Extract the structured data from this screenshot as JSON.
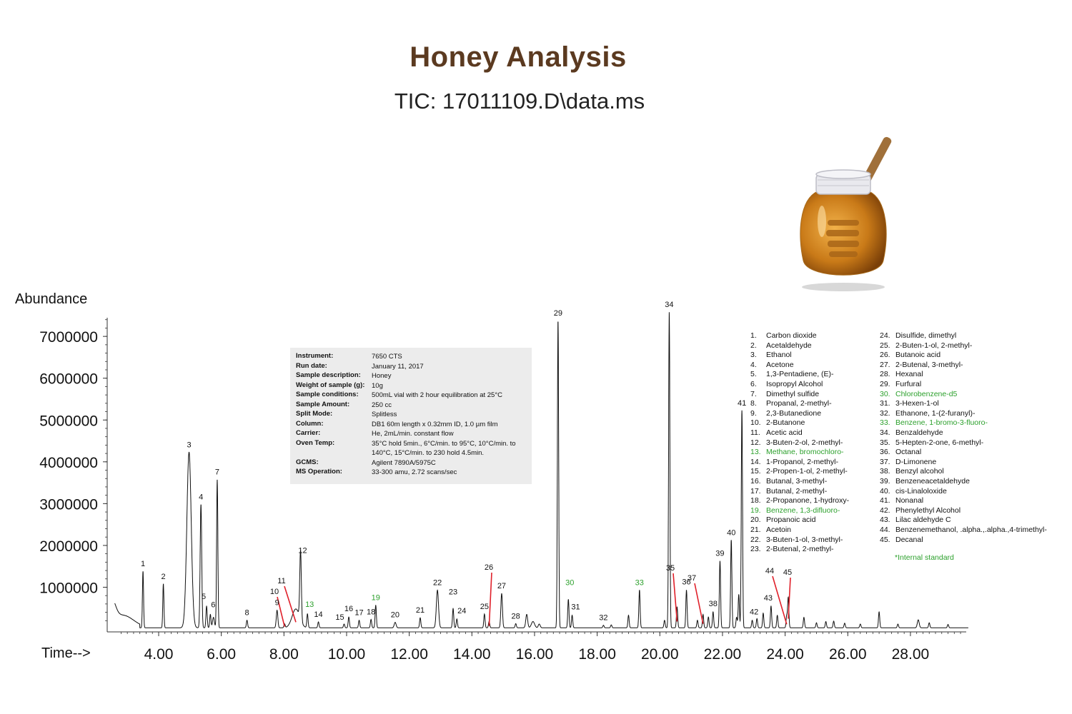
{
  "header": {
    "title": "Honey Analysis",
    "subtitle": "TIC: 17011109.D\\data.ms"
  },
  "colors": {
    "title": "#5b3a20",
    "trace": "#111111",
    "standard": "#2ca02c",
    "pointer": "#e0202a",
    "panel": "#ececec",
    "honey": "#c97a18"
  },
  "info_panel": {
    "rows": [
      {
        "key": "Instrument:",
        "value": "7650 CTS"
      },
      {
        "key": "Run date:",
        "value": "January 11, 2017"
      },
      {
        "key": "Sample description:",
        "value": "Honey"
      },
      {
        "key": "Weight of sample (g):",
        "value": "10g"
      },
      {
        "key": "Sample conditions:",
        "value": "500mL vial with 2 hour equilibration at 25°C"
      },
      {
        "key": "Sample Amount:",
        "value": "250 cc"
      },
      {
        "key": "Split Mode:",
        "value": "Splitless"
      },
      {
        "key": "Column:",
        "value": "DB1 60m length x 0.32mm ID, 1.0 µm film"
      },
      {
        "key": "Carrier:",
        "value": "He, 2mL/min. constant flow"
      },
      {
        "key": "Oven Temp:",
        "value": "35°C hold 5min., 6°C/min. to 95°C, 10°C/min. to 140°C, 15°C/min. to 230 hold 4.5min."
      },
      {
        "key": "GCMS:",
        "value": "Agilent 7890A/5975C"
      },
      {
        "key": "MS Operation:",
        "value": "33-300 amu, 2.72 scans/sec"
      }
    ]
  },
  "compounds": [
    {
      "n": "1.",
      "name": "Carbon dioxide",
      "std": false
    },
    {
      "n": "2.",
      "name": "Acetaldehyde",
      "std": false
    },
    {
      "n": "3.",
      "name": "Ethanol",
      "std": false
    },
    {
      "n": "4.",
      "name": "Acetone",
      "std": false
    },
    {
      "n": "5.",
      "name": "1,3-Pentadiene, (E)-",
      "std": false
    },
    {
      "n": "6.",
      "name": "Isopropyl Alcohol",
      "std": false
    },
    {
      "n": "7.",
      "name": "Dimethyl sulfide",
      "std": false
    },
    {
      "n": "8.",
      "name": "Propanal, 2-methyl-",
      "std": false
    },
    {
      "n": "9.",
      "name": "2,3-Butanedione",
      "std": false
    },
    {
      "n": "10.",
      "name": "2-Butanone",
      "std": false
    },
    {
      "n": "11.",
      "name": "Acetic acid",
      "std": false
    },
    {
      "n": "12.",
      "name": "3-Buten-2-ol, 2-methyl-",
      "std": false
    },
    {
      "n": "13.",
      "name": "Methane, bromochloro-",
      "std": true
    },
    {
      "n": "14.",
      "name": "1-Propanol, 2-methyl-",
      "std": false
    },
    {
      "n": "15.",
      "name": "2-Propen-1-ol, 2-methyl-",
      "std": false
    },
    {
      "n": "16.",
      "name": "Butanal, 3-methyl-",
      "std": false
    },
    {
      "n": "17.",
      "name": "Butanal, 2-methyl-",
      "std": false
    },
    {
      "n": "18.",
      "name": "2-Propanone, 1-hydroxy-",
      "std": false
    },
    {
      "n": "19.",
      "name": "Benzene, 1,3-difluoro-",
      "std": true
    },
    {
      "n": "20.",
      "name": "Propanoic acid",
      "std": false
    },
    {
      "n": "21.",
      "name": "Acetoin",
      "std": false
    },
    {
      "n": "22.",
      "name": "3-Buten-1-ol, 3-methyl-",
      "std": false
    },
    {
      "n": "23.",
      "name": "2-Butenal, 2-methyl-",
      "std": false
    },
    {
      "n": "24.",
      "name": "Disulfide, dimethyl",
      "std": false
    },
    {
      "n": "25.",
      "name": "2-Buten-1-ol, 2-methyl-",
      "std": false
    },
    {
      "n": "26.",
      "name": "Butanoic acid",
      "std": false
    },
    {
      "n": "27.",
      "name": "2-Butenal, 3-methyl-",
      "std": false
    },
    {
      "n": "28.",
      "name": "Hexanal",
      "std": false
    },
    {
      "n": "29.",
      "name": "Furfural",
      "std": false
    },
    {
      "n": "30.",
      "name": "Chlorobenzene-d5",
      "std": true
    },
    {
      "n": "31.",
      "name": "3-Hexen-1-ol",
      "std": false
    },
    {
      "n": "32.",
      "name": "Ethanone, 1-(2-furanyl)-",
      "std": false
    },
    {
      "n": "33.",
      "name": "Benzene, 1-bromo-3-fluoro-",
      "std": true
    },
    {
      "n": "34.",
      "name": "Benzaldehyde",
      "std": false
    },
    {
      "n": "35.",
      "name": "5-Hepten-2-one, 6-methyl-",
      "std": false
    },
    {
      "n": "36.",
      "name": "Octanal",
      "std": false
    },
    {
      "n": "37.",
      "name": "D-Limonene",
      "std": false
    },
    {
      "n": "38.",
      "name": "Benzyl alcohol",
      "std": false
    },
    {
      "n": "39.",
      "name": "Benzeneacetaldehyde",
      "std": false
    },
    {
      "n": "40.",
      "name": "cis-Linaloloxide",
      "std": false
    },
    {
      "n": "41.",
      "name": "Nonanal",
      "std": false
    },
    {
      "n": "42.",
      "name": "Phenylethyl Alcohol",
      "std": false
    },
    {
      "n": "43.",
      "name": "Lilac aldehyde C",
      "std": false
    },
    {
      "n": "44.",
      "name": "Benzenemethanol, .alpha.,.alpha.,4-trimethyl-",
      "std": false
    },
    {
      "n": "45.",
      "name": "Decanal",
      "std": false
    }
  ],
  "footnote": "*Internal standard",
  "chart_data": {
    "type": "line",
    "title": "Honey Analysis",
    "subtitle": "TIC: 17011109.D\\data.ms",
    "ylabel": "Abundance",
    "xlabel": "Time-->",
    "xlim": [
      2.0,
      30.0
    ],
    "ylim": [
      0,
      7600000
    ],
    "x_ticks": [
      "4.00",
      "6.00",
      "8.00",
      "10.00",
      "12.00",
      "14.00",
      "16.00",
      "18.00",
      "20.00",
      "22.00",
      "24.00",
      "26.00",
      "28.00"
    ],
    "y_ticks": [
      "1000000",
      "2000000",
      "3000000",
      "4000000",
      "5000000",
      "6000000",
      "7000000"
    ],
    "baseline": 30000,
    "peaks": [
      {
        "label": "1",
        "rt": 3.5,
        "height": 1350000,
        "width": 0.018,
        "std": false
      },
      {
        "label": "2",
        "rt": 4.15,
        "height": 1050000,
        "width": 0.018,
        "std": false
      },
      {
        "label": "3",
        "rt": 4.97,
        "height": 4200000,
        "width": 0.07,
        "std": false
      },
      {
        "label": "4",
        "rt": 5.35,
        "height": 2950000,
        "width": 0.025,
        "std": false
      },
      {
        "label": "5",
        "rt": 5.53,
        "height": 520000,
        "width": 0.02,
        "std": false
      },
      {
        "label": "6",
        "rt": 5.65,
        "height": 320000,
        "width": 0.02,
        "std": false
      },
      {
        "label": "7",
        "rt": 5.87,
        "height": 3550000,
        "width": 0.02,
        "std": false
      },
      {
        "label": "8",
        "rt": 6.82,
        "height": 180000,
        "width": 0.02,
        "std": false
      },
      {
        "label": "9",
        "rt": 7.78,
        "height": 420000,
        "width": 0.025,
        "std": false
      },
      {
        "label": "10",
        "rt": 8.02,
        "height": 90000,
        "width": 0.02,
        "std": false
      },
      {
        "label": "11",
        "rt": 8.38,
        "height": 450000,
        "width": 0.12,
        "std": false
      },
      {
        "label": "12",
        "rt": 8.53,
        "height": 1650000,
        "width": 0.025,
        "std": false
      },
      {
        "label": "13",
        "rt": 8.75,
        "height": 330000,
        "width": 0.02,
        "std": true
      },
      {
        "label": "14",
        "rt": 9.1,
        "height": 140000,
        "width": 0.02,
        "std": false
      },
      {
        "label": "15",
        "rt": 9.92,
        "height": 90000,
        "width": 0.02,
        "std": false
      },
      {
        "label": "16",
        "rt": 10.07,
        "height": 260000,
        "width": 0.02,
        "std": false
      },
      {
        "label": "17",
        "rt": 10.4,
        "height": 180000,
        "width": 0.02,
        "std": false
      },
      {
        "label": "18",
        "rt": 10.78,
        "height": 200000,
        "width": 0.02,
        "std": false
      },
      {
        "label": "19",
        "rt": 10.93,
        "height": 540000,
        "width": 0.02,
        "std": true
      },
      {
        "label": "20",
        "rt": 11.55,
        "height": 130000,
        "width": 0.03,
        "std": false
      },
      {
        "label": "21",
        "rt": 12.35,
        "height": 240000,
        "width": 0.02,
        "std": false
      },
      {
        "label": "22",
        "rt": 12.9,
        "height": 900000,
        "width": 0.035,
        "std": false
      },
      {
        "label": "23",
        "rt": 13.4,
        "height": 460000,
        "width": 0.02,
        "std": false
      },
      {
        "label": "24",
        "rt": 13.52,
        "height": 210000,
        "width": 0.02,
        "std": false
      },
      {
        "label": "25",
        "rt": 14.4,
        "height": 330000,
        "width": 0.02,
        "std": false
      },
      {
        "label": "26",
        "rt": 14.55,
        "height": 150000,
        "width": 0.02,
        "std": false
      },
      {
        "label": "27",
        "rt": 14.95,
        "height": 820000,
        "width": 0.025,
        "std": false
      },
      {
        "label": "28",
        "rt": 15.4,
        "height": 100000,
        "width": 0.02,
        "std": false
      },
      {
        "label": "29",
        "rt": 16.75,
        "height": 7350000,
        "width": 0.02,
        "std": false
      },
      {
        "label": "30",
        "rt": 17.08,
        "height": 680000,
        "width": 0.02,
        "std": true
      },
      {
        "label": "31",
        "rt": 17.2,
        "height": 300000,
        "width": 0.02,
        "std": false
      },
      {
        "label": "32",
        "rt": 18.2,
        "height": 60000,
        "width": 0.02,
        "std": false
      },
      {
        "label": "33",
        "rt": 19.35,
        "height": 900000,
        "width": 0.02,
        "std": true
      },
      {
        "label": "34",
        "rt": 20.3,
        "height": 7550000,
        "width": 0.02,
        "std": false
      },
      {
        "label": "35",
        "rt": 20.55,
        "height": 500000,
        "width": 0.02,
        "std": false
      },
      {
        "label": "36",
        "rt": 20.85,
        "height": 900000,
        "width": 0.02,
        "std": false
      },
      {
        "label": "37",
        "rt": 21.38,
        "height": 320000,
        "width": 0.02,
        "std": false
      },
      {
        "label": "38",
        "rt": 21.7,
        "height": 380000,
        "width": 0.02,
        "std": false
      },
      {
        "label": "39",
        "rt": 21.92,
        "height": 1600000,
        "width": 0.02,
        "std": false
      },
      {
        "label": "40",
        "rt": 22.28,
        "height": 2100000,
        "width": 0.02,
        "std": false
      },
      {
        "label": "41",
        "rt": 22.62,
        "height": 5200000,
        "width": 0.02,
        "std": false
      },
      {
        "label": "42",
        "rt": 23.1,
        "height": 220000,
        "width": 0.02,
        "std": false
      },
      {
        "label": "43",
        "rt": 23.55,
        "height": 520000,
        "width": 0.02,
        "std": false
      },
      {
        "label": "44",
        "rt": 24.05,
        "height": 280000,
        "width": 0.02,
        "std": false
      },
      {
        "label": "45",
        "rt": 24.1,
        "height": 720000,
        "width": 0.02,
        "std": false
      }
    ],
    "minor_peaks": [
      {
        "rt": 2.5,
        "height": 500000,
        "width": 0.12
      },
      {
        "rt": 5.75,
        "height": 250000,
        "width": 0.03
      },
      {
        "rt": 15.75,
        "height": 320000,
        "width": 0.03
      },
      {
        "rt": 15.95,
        "height": 150000,
        "width": 0.05
      },
      {
        "rt": 16.15,
        "height": 90000,
        "width": 0.03
      },
      {
        "rt": 18.45,
        "height": 70000,
        "width": 0.02
      },
      {
        "rt": 19.0,
        "height": 300000,
        "width": 0.02
      },
      {
        "rt": 20.15,
        "height": 180000,
        "width": 0.02
      },
      {
        "rt": 21.2,
        "height": 180000,
        "width": 0.02
      },
      {
        "rt": 21.55,
        "height": 260000,
        "width": 0.02
      },
      {
        "rt": 22.45,
        "height": 250000,
        "width": 0.02
      },
      {
        "rt": 22.52,
        "height": 800000,
        "width": 0.02
      },
      {
        "rt": 22.95,
        "height": 180000,
        "width": 0.02
      },
      {
        "rt": 23.3,
        "height": 350000,
        "width": 0.02
      },
      {
        "rt": 23.75,
        "height": 300000,
        "width": 0.02
      },
      {
        "rt": 24.6,
        "height": 250000,
        "width": 0.02
      },
      {
        "rt": 25.0,
        "height": 120000,
        "width": 0.02
      },
      {
        "rt": 25.3,
        "height": 150000,
        "width": 0.02
      },
      {
        "rt": 25.55,
        "height": 160000,
        "width": 0.02
      },
      {
        "rt": 25.9,
        "height": 110000,
        "width": 0.02
      },
      {
        "rt": 26.4,
        "height": 90000,
        "width": 0.02
      },
      {
        "rt": 27.0,
        "height": 380000,
        "width": 0.02
      },
      {
        "rt": 27.6,
        "height": 90000,
        "width": 0.02
      },
      {
        "rt": 28.25,
        "height": 190000,
        "width": 0.03
      },
      {
        "rt": 28.6,
        "height": 120000,
        "width": 0.02
      },
      {
        "rt": 29.2,
        "height": 80000,
        "width": 0.02
      }
    ]
  }
}
